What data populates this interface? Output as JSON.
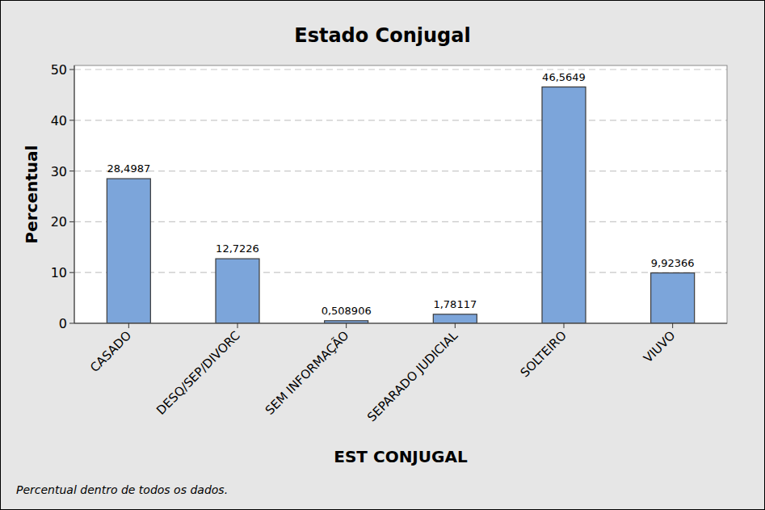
{
  "chart_data": {
    "type": "bar",
    "title": "Estado Conjugal",
    "x_label": "EST CONJUGAL",
    "y_label": "Percentual",
    "annotations": [
      "Percentual dentro de todos os dados."
    ],
    "categories": [
      "CASADO",
      "DESQ/SEP/DIVORC",
      "SEM INFORMAÇÃO",
      "SEPARADO JUDICIAL",
      "SOLTEIRO",
      "VIUVO"
    ],
    "values": [
      28.4987,
      12.7226,
      0.508906,
      1.78117,
      46.5649,
      9.92366
    ],
    "value_labels": [
      "28,4987",
      "12,7226",
      "0,508906",
      "1,78117",
      "46,5649",
      "9,92366"
    ],
    "data_labels": true,
    "color": "#7ca5da",
    "ylim": [
      0,
      50.8
    ],
    "yticks": [
      0,
      10,
      20,
      30,
      40,
      50
    ],
    "grid": true
  }
}
